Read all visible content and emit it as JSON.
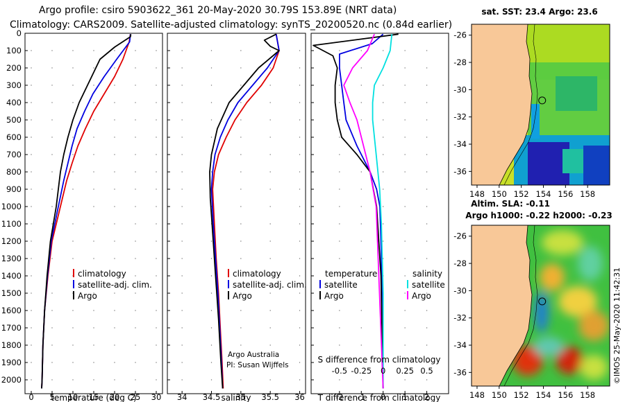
{
  "header": {
    "line1": "Argo profile: csiro 5903622_361 20-May-2020 30.79S 153.89E (NRT data)",
    "line2": "Climatology: CARS2009. Satellite-adjusted climatology: synTS_20200520.nc (0.84d earlier)"
  },
  "colors": {
    "climatology": "#e00000",
    "satellite": "#0000e0",
    "argo": "#000000",
    "sal_satellite": "#00e0e0",
    "sal_argo": "#ff00ff",
    "land": "#f8c898"
  },
  "depth_axis": {
    "ticks": [
      0,
      100,
      200,
      300,
      400,
      500,
      600,
      700,
      800,
      900,
      1000,
      1100,
      1200,
      1300,
      1400,
      1500,
      1600,
      1700,
      1800,
      1900,
      2000
    ],
    "range": [
      0,
      2080
    ]
  },
  "chart_data": [
    {
      "type": "line",
      "name": "temperature-panel",
      "xlabel": "temperature (deg C)",
      "ylabel": "depth (m)",
      "xlim": [
        -1.5,
        31.5
      ],
      "xticks": [
        0,
        5,
        10,
        15,
        20,
        25,
        30
      ],
      "ylim": [
        2080,
        0
      ],
      "legend": [
        "climatology",
        "satellite-adj. clim.",
        "Argo"
      ],
      "series": [
        {
          "name": "climatology",
          "color": "#e00000",
          "x": [
            23.8,
            23.5,
            22.0,
            20.0,
            17.5,
            15.0,
            13.0,
            11.2,
            9.8,
            8.5,
            7.0,
            5.0,
            4.0,
            3.2,
            2.8,
            2.6,
            2.5
          ],
          "depth": [
            5,
            50,
            150,
            250,
            350,
            450,
            550,
            650,
            750,
            850,
            1000,
            1200,
            1400,
            1600,
            1800,
            2000,
            2050
          ]
        },
        {
          "name": "satellite-adj. clim.",
          "color": "#0000e0",
          "x": [
            23.8,
            23.6,
            20.5,
            17.5,
            14.8,
            12.8,
            11.0,
            9.8,
            8.8,
            7.8,
            6.5,
            4.8,
            3.9,
            3.2,
            2.8,
            2.6,
            2.5
          ],
          "depth": [
            5,
            50,
            150,
            250,
            350,
            450,
            550,
            650,
            750,
            850,
            1000,
            1200,
            1400,
            1600,
            1800,
            2000,
            2050
          ]
        },
        {
          "name": "Argo",
          "color": "#000000",
          "x": [
            23.9,
            23.8,
            20.0,
            16.5,
            15.5,
            13.5,
            11.5,
            10.0,
            8.8,
            7.8,
            7.0,
            6.0,
            4.6,
            3.8,
            3.2,
            2.8,
            2.6,
            2.5
          ],
          "depth": [
            5,
            20,
            80,
            150,
            200,
            300,
            400,
            500,
            600,
            700,
            800,
            1000,
            1200,
            1400,
            1600,
            1800,
            2000,
            2050
          ]
        }
      ]
    },
    {
      "type": "line",
      "name": "salinity-panel",
      "xlabel": "salinity",
      "ylabel": "",
      "xlim": [
        33.75,
        36.1
      ],
      "xticks": [
        34,
        34.5,
        35,
        35.5,
        36
      ],
      "ylim": [
        2080,
        0
      ],
      "legend": [
        "climatology",
        "satellite-adj. clim.",
        "Argo"
      ],
      "series": [
        {
          "name": "climatology",
          "color": "#e00000",
          "x": [
            35.6,
            35.65,
            35.55,
            35.35,
            35.1,
            34.9,
            34.75,
            34.62,
            34.55,
            34.52,
            34.55,
            34.58,
            34.62,
            34.65,
            34.68,
            34.7
          ],
          "depth": [
            5,
            100,
            200,
            300,
            400,
            500,
            600,
            700,
            800,
            900,
            1100,
            1300,
            1500,
            1700,
            1900,
            2050
          ]
        },
        {
          "name": "satellite-adj. clim.",
          "color": "#0000e0",
          "x": [
            35.6,
            35.65,
            35.45,
            35.2,
            34.95,
            34.78,
            34.65,
            34.56,
            34.52,
            34.5,
            34.53,
            34.57,
            34.61,
            34.64,
            34.67,
            34.69
          ],
          "depth": [
            5,
            100,
            200,
            300,
            400,
            500,
            600,
            700,
            800,
            900,
            1100,
            1300,
            1500,
            1700,
            1900,
            2050
          ]
        },
        {
          "name": "Argo",
          "color": "#000000",
          "x": [
            35.6,
            35.4,
            35.5,
            35.65,
            35.3,
            35.05,
            34.8,
            34.6,
            34.5,
            34.47,
            34.48,
            34.52,
            34.57,
            34.62,
            34.66,
            34.69
          ],
          "depth": [
            5,
            40,
            75,
            100,
            200,
            300,
            400,
            550,
            700,
            800,
            950,
            1150,
            1400,
            1650,
            1900,
            2050
          ]
        }
      ],
      "annotation": [
        "Argo Australia",
        "PI: Susan Wijffels"
      ]
    },
    {
      "type": "line",
      "name": "difference-panel",
      "xlabel": "T difference from climatology",
      "ylabel": "",
      "xlim": [
        -3.3,
        3.0
      ],
      "xticks": [
        -2,
        -1,
        0,
        1,
        2
      ],
      "x2label": "S difference from climatology",
      "x2ticks": [
        -0.5,
        -0.25,
        0,
        0.25,
        0.5
      ],
      "x2lim": [
        -0.825,
        0.75
      ],
      "ylim": [
        2080,
        0
      ],
      "legend_temperature_title": "temperature",
      "legend_salinity_title": "salinity",
      "legend": [
        "satellite",
        "Argo",
        "satellite",
        "Argo"
      ],
      "series": [
        {
          "name": "T satellite",
          "color": "#0000e0",
          "x": [
            0.0,
            -0.5,
            -2.0,
            -2.0,
            -1.9,
            -1.8,
            -1.7,
            -1.2,
            -0.6,
            -0.3,
            -0.15,
            -0.1,
            -0.05,
            0.0
          ],
          "depth": [
            5,
            60,
            120,
            200,
            300,
            400,
            500,
            650,
            800,
            900,
            1000,
            1200,
            1500,
            2050
          ]
        },
        {
          "name": "T Argo",
          "color": "#000000",
          "x": [
            0.7,
            -3.2,
            -2.3,
            -2.1,
            -2.2,
            -2.2,
            -2.1,
            -1.9,
            -1.2,
            -0.6,
            -0.3,
            -0.1,
            0.0
          ],
          "depth": [
            5,
            70,
            130,
            200,
            300,
            400,
            500,
            600,
            700,
            800,
            1000,
            1400,
            2050
          ]
        },
        {
          "name": "S satellite",
          "color": "#00e0e0",
          "x": [
            0.1,
            0.08,
            0.0,
            -0.1,
            -0.12,
            -0.12,
            -0.08,
            -0.04,
            -0.02,
            0.0,
            0.0
          ],
          "depth": [
            5,
            100,
            200,
            300,
            400,
            500,
            700,
            900,
            1100,
            1500,
            2050
          ]
        },
        {
          "name": "S Argo",
          "color": "#ff00ff",
          "x": [
            -0.1,
            -0.18,
            -0.35,
            -0.45,
            -0.38,
            -0.3,
            -0.25,
            -0.15,
            -0.08,
            0.0
          ],
          "depth": [
            5,
            100,
            200,
            300,
            400,
            500,
            600,
            800,
            1000,
            2050
          ]
        }
      ]
    }
  ],
  "maps": {
    "sst": {
      "title": "sat. SST: 23.4 Argo: 23.6"
    },
    "sla": {
      "title_line1": "Altim. SLA: -0.11",
      "title_line2": "Argo h1000: -0.22 h2000: -0.23"
    },
    "lat_ticks": [
      -26,
      -28,
      -30,
      -32,
      -34,
      -36
    ],
    "lon_ticks": [
      148,
      150,
      152,
      154,
      156,
      158
    ],
    "float_position": {
      "lat": -30.79,
      "lon": 153.89
    }
  },
  "credit": "©IMOS 25-May-2020 11:42:31"
}
